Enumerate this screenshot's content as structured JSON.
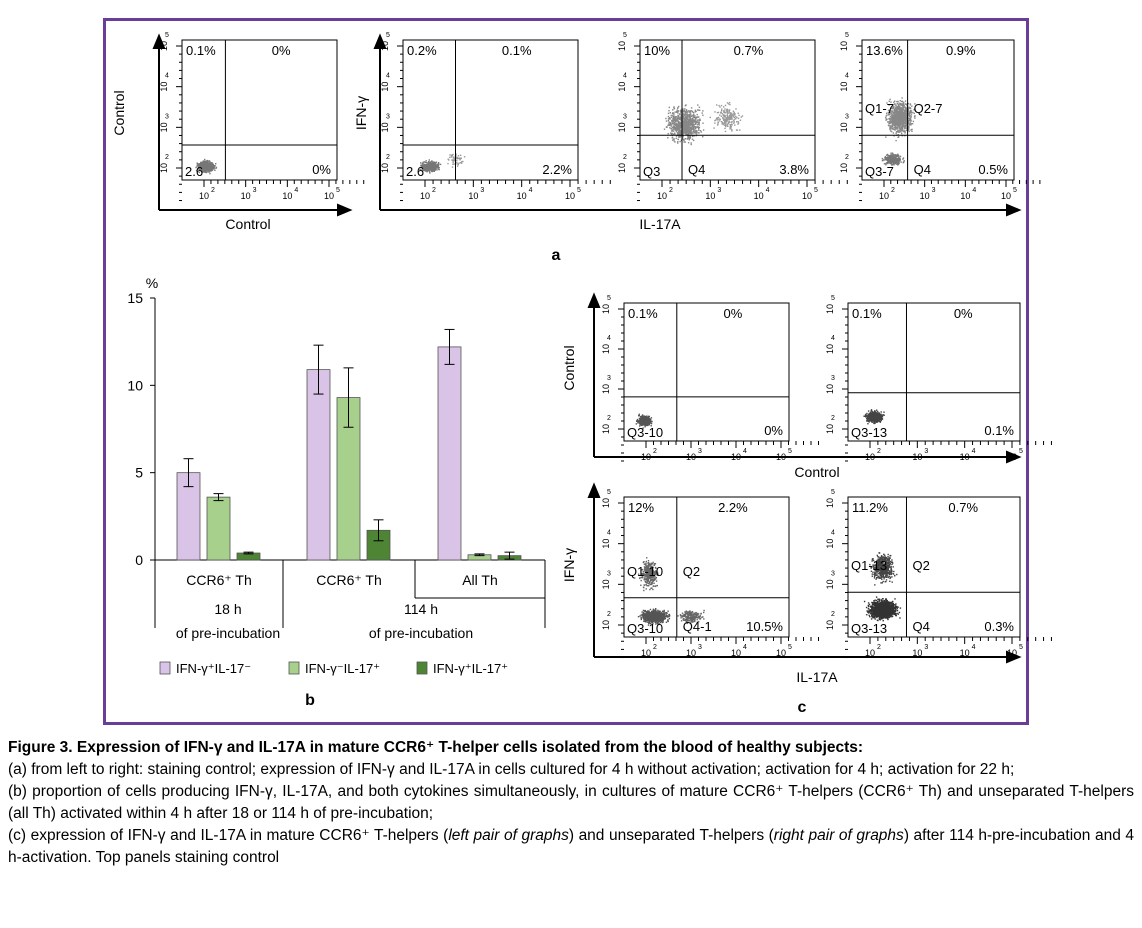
{
  "panel_a": {
    "letter": "a",
    "plots": [
      {
        "ylabel": "Control",
        "q_ul": "0.1%",
        "q_ur": "0%",
        "q_lr": "0%",
        "q_ll": "2.6",
        "q_ul_name": "",
        "q_ur_name": "",
        "q_ll_name": "",
        "q_lr_name": ""
      },
      {
        "ylabel": "IFN-γ",
        "q_ul": "0.2%",
        "q_ur": "0.1%",
        "q_lr": "2.2%",
        "q_ll": "2.6",
        "q_ul_name": "",
        "q_ur_name": "",
        "q_ll_name": "",
        "q_lr_name": ""
      },
      {
        "ylabel": "",
        "q_ul": "10%",
        "q_ur": "0.7%",
        "q_lr": "3.8%",
        "q_ll": "",
        "q_ul_name": "",
        "q_ur_name": "",
        "q_ll_name": "Q3",
        "q_lr_name": "Q4"
      },
      {
        "ylabel": "",
        "q_ul": "13.6%",
        "q_ur": "0.9%",
        "q_lr": "0.5%",
        "q_ll": "",
        "q_ul_name": "Q1-7",
        "q_ur_name": "Q2-7",
        "q_ll_name": "Q3-7",
        "q_lr_name": "Q4"
      }
    ],
    "xlabel_left": "Control",
    "xlabel_right": "IL-17A"
  },
  "panel_b": {
    "letter": "b",
    "unit": "%"
  },
  "chart_data": {
    "type": "bar",
    "categories": [
      "CCR6⁺ Th",
      "CCR6⁺ Th",
      "All Th"
    ],
    "group_labels": [
      "18 h",
      "114 h"
    ],
    "group_sublabels": [
      "of pre-incubation",
      "of pre-incubation"
    ],
    "series": [
      {
        "name": "IFN-γ⁺IL-17⁻",
        "values": [
          5.0,
          10.9,
          12.2
        ],
        "errors": [
          0.8,
          1.4,
          1.0
        ],
        "color": "#d9c3e6"
      },
      {
        "name": "IFN-γ⁻IL-17⁺",
        "values": [
          3.6,
          9.3,
          0.3
        ],
        "errors": [
          0.2,
          1.7,
          0.05
        ],
        "color": "#a8d08d"
      },
      {
        "name": "IFN-γ⁺IL-17⁺",
        "values": [
          0.4,
          1.7,
          0.25
        ],
        "errors": [
          0.05,
          0.6,
          0.2
        ],
        "color": "#4e8535"
      }
    ],
    "yticks": [
      0,
      5,
      10,
      15
    ],
    "ylim": [
      0,
      15
    ],
    "ylabel": "%",
    "xlabel": "",
    "title": "",
    "legend_position": "bottom"
  },
  "panel_c": {
    "letter": "c",
    "plots": [
      {
        "q_ul": "0.1%",
        "q_ur": "0%",
        "q_lr": "0%",
        "q_ll": "Q3-10",
        "q_ul_name": "",
        "q_ur_name": ""
      },
      {
        "q_ul": "0.1%",
        "q_ur": "0%",
        "q_lr": "0.1%",
        "q_ll": "Q3-13",
        "q_ul_name": "",
        "q_ur_name": ""
      },
      {
        "q_ul": "12%",
        "q_ur": "2.2%",
        "q_lr": "10.5%",
        "q_ll": "Q3-10",
        "q_ul_name": "Q1-10",
        "q_ur_name": "Q2",
        "q_lr_name": "Q4-1"
      },
      {
        "q_ul": "11.2%",
        "q_ur": "0.7%",
        "q_lr": "0.3%",
        "q_ll": "Q3-13",
        "q_ul_name": "Q1-13",
        "q_ur_name": "Q2",
        "q_lr_name": "Q4"
      }
    ],
    "ylabel_top": "Control",
    "ylabel_bottom": "IFN-γ",
    "xlabel_top": "Control",
    "xlabel_bottom": "IL-17A"
  },
  "caption": {
    "title": "Figure 3. Expression of IFN-γ and IL-17A in mature CCR6⁺ T-helper cells isolated from the blood of healthy subjects:",
    "line_a": "(a) from left to right: staining control; expression of IFN-γ and IL-17A in cells cultured for 4 h without activation; activation for 4 h; activation for 22 h;",
    "line_b": "(b) proportion of cells producing IFN-γ, IL-17A, and both cytokines simultaneously, in cultures of mature CCR6⁺ T-helpers (CCR6⁺ Th) and unseparated T-helpers (all Th) activated within 4 h after 18 or 114 h of pre-incubation;",
    "line_c1": "(c) expression of IFN-γ and IL-17A in mature CCR6⁺ T-helpers (",
    "line_c_left": "left pair of graphs",
    "line_c2": ") and unseparated T-helpers (",
    "line_c_right": "right pair of graphs",
    "line_c3": ") after 114 h-pre-incubation and 4 h-activation. Top panels staining control"
  }
}
